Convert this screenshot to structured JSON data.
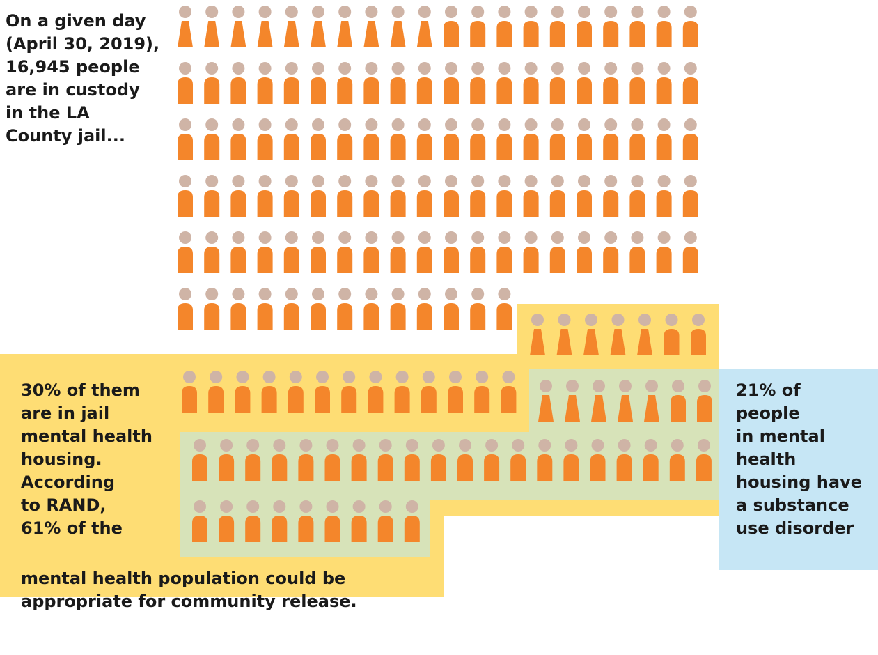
{
  "intro_text": "On a given day\n(April 30, 2019),\n16,945 people\nare in custody\nin the LA\nCounty jail...",
  "mental_health_text": "30% of them\nare in jail\nmental health\nhousing.\nAccording\nto RAND,\n61% of the",
  "mental_health_text_tail": "mental health population could be\nappropriate for community release.",
  "substance_text": "21% of\npeople\nin mental\nhealth\nhousing have\na substance\nuse disorder",
  "colors": {
    "head": "#cfb4a6",
    "body": "#f4862b",
    "mental_health_box": "#fedd74",
    "substance_overlap_box": "#d7e3b9",
    "substance_box": "#c6e6f5"
  },
  "icons": {
    "figure": "person-icon"
  }
}
